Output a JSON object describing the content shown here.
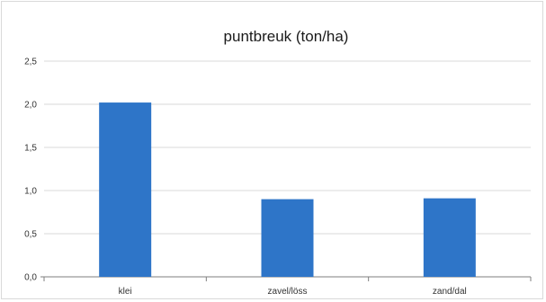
{
  "chart_data": {
    "type": "bar",
    "title": "puntbreuk (ton/ha)",
    "xlabel": "",
    "ylabel": "",
    "categories": [
      "klei",
      "zavel/löss",
      "zand/dal"
    ],
    "values": [
      2.02,
      0.9,
      0.91
    ],
    "ylim": [
      0,
      2.5
    ],
    "yticks": [
      "0,0",
      "0,5",
      "1,0",
      "1,5",
      "2,0",
      "2,5"
    ],
    "ytick_values": [
      0,
      0.5,
      1.0,
      1.5,
      2.0,
      2.5
    ],
    "grid": true,
    "legend": "none",
    "bar_color": "#2e75c8",
    "grid_color": "#d9d9d9"
  }
}
